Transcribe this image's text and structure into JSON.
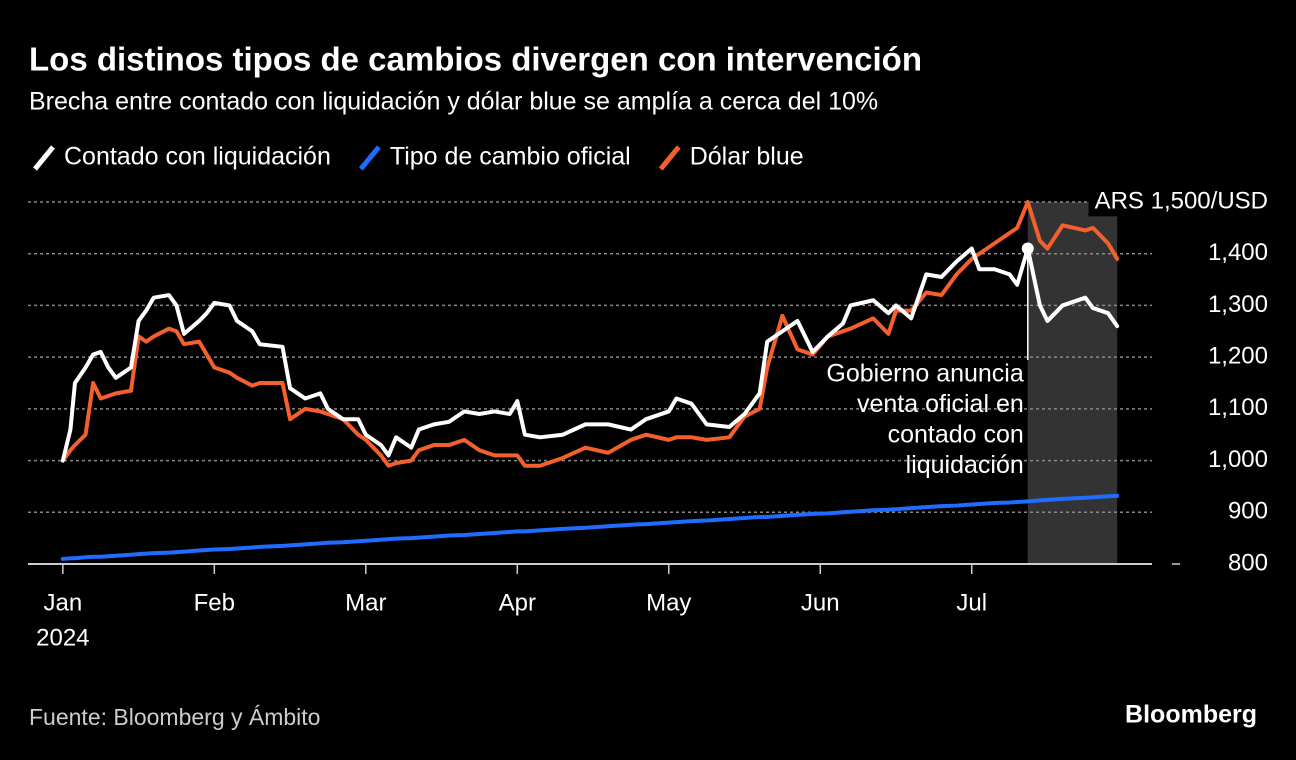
{
  "chart_data": {
    "type": "line",
    "title": "Los distinos tipos de cambios divergen con intervención",
    "subtitle": "Brecha entre contado con liquidación y dólar blue se amplía a cerca del 10%",
    "source": "Fuente: Bloomberg y Ámbito",
    "brand": "Bloomberg",
    "x": [
      1.0,
      1.05,
      1.08,
      1.15,
      1.2,
      1.25,
      1.3,
      1.35,
      1.45,
      1.5,
      1.55,
      1.6,
      1.7,
      1.75,
      1.8,
      1.9,
      1.95,
      2.0,
      2.1,
      2.15,
      2.25,
      2.3,
      2.45,
      2.5,
      2.6,
      2.7,
      2.75,
      2.85,
      2.95,
      3.0,
      3.1,
      3.15,
      3.2,
      3.3,
      3.35,
      3.45,
      3.55,
      3.65,
      3.75,
      3.85,
      3.95,
      4.0,
      4.05,
      4.15,
      4.3,
      4.45,
      4.6,
      4.75,
      4.85,
      5.0,
      5.05,
      5.15,
      5.25,
      5.4,
      5.5,
      5.6,
      5.65,
      5.75,
      5.85,
      5.95,
      6.05,
      6.15,
      6.2,
      6.35,
      6.45,
      6.5,
      6.6,
      6.7,
      6.8,
      6.9,
      7.0,
      7.05,
      7.15,
      7.25,
      7.3,
      7.37,
      7.45,
      7.5,
      7.6,
      7.75,
      7.8,
      7.9,
      7.96
    ],
    "series": [
      {
        "name": "Contado con liquidación",
        "color": "#ffffff",
        "values": [
          1000,
          1060,
          1150,
          1180,
          1205,
          1210,
          1180,
          1160,
          1180,
          1270,
          1290,
          1315,
          1320,
          1300,
          1245,
          1270,
          1285,
          1305,
          1300,
          1270,
          1250,
          1225,
          1220,
          1140,
          1120,
          1130,
          1100,
          1080,
          1080,
          1050,
          1030,
          1010,
          1045,
          1025,
          1060,
          1070,
          1075,
          1095,
          1090,
          1095,
          1090,
          1115,
          1050,
          1045,
          1050,
          1070,
          1070,
          1060,
          1080,
          1095,
          1120,
          1110,
          1070,
          1065,
          1090,
          1130,
          1230,
          1250,
          1270,
          1210,
          1240,
          1265,
          1300,
          1310,
          1285,
          1300,
          1275,
          1360,
          1355,
          1385,
          1410,
          1370,
          1370,
          1360,
          1340,
          1410,
          1300,
          1270,
          1300,
          1315,
          1295,
          1285,
          1260
        ]
      },
      {
        "name": "Tipo de cambio oficial",
        "color": "#1f6cff",
        "values": [
          810,
          811,
          811,
          813,
          814,
          814,
          815,
          816,
          818,
          819,
          820,
          821,
          822,
          823,
          824,
          826,
          827,
          828,
          829,
          830,
          832,
          833,
          835,
          836,
          838,
          840,
          841,
          842,
          844,
          845,
          847,
          848,
          849,
          850,
          851,
          853,
          855,
          856,
          858,
          860,
          862,
          863,
          863,
          865,
          868,
          870,
          873,
          876,
          877,
          880,
          881,
          883,
          884,
          887,
          889,
          891,
          891,
          893,
          895,
          897,
          898,
          900,
          901,
          904,
          905,
          906,
          908,
          910,
          912,
          913,
          915,
          916,
          918,
          919,
          920,
          921,
          923,
          924,
          926,
          928,
          929,
          931,
          932
        ]
      },
      {
        "name": "Dólar blue",
        "color": "#f4602c",
        "values": [
          1000,
          1020,
          1030,
          1050,
          1150,
          1120,
          1125,
          1130,
          1135,
          1240,
          1230,
          1240,
          1255,
          1250,
          1225,
          1230,
          1205,
          1180,
          1170,
          1160,
          1145,
          1150,
          1150,
          1080,
          1100,
          1095,
          1090,
          1080,
          1050,
          1040,
          1010,
          990,
          995,
          1000,
          1020,
          1030,
          1030,
          1040,
          1020,
          1010,
          1010,
          1010,
          990,
          990,
          1005,
          1025,
          1015,
          1040,
          1050,
          1040,
          1045,
          1045,
          1040,
          1045,
          1085,
          1100,
          1180,
          1280,
          1215,
          1205,
          1240,
          1250,
          1255,
          1275,
          1245,
          1290,
          1290,
          1325,
          1320,
          1360,
          1390,
          1400,
          1420,
          1440,
          1450,
          1500,
          1425,
          1410,
          1455,
          1445,
          1450,
          1420,
          1390
        ]
      }
    ],
    "xlim": [
      0.77,
      8.19
    ],
    "xticks": [
      {
        "value": 1,
        "label": "Jan"
      },
      {
        "value": 2,
        "label": "Feb"
      },
      {
        "value": 3,
        "label": "Mar"
      },
      {
        "value": 4,
        "label": "Apr"
      },
      {
        "value": 5,
        "label": "May"
      },
      {
        "value": 6,
        "label": "Jun"
      },
      {
        "value": 7,
        "label": "Jul"
      }
    ],
    "x_sublabel": "2024",
    "ylim": [
      800,
      1500
    ],
    "yticks": [
      800,
      900,
      {
        "value": 1000,
        "label": "1,000"
      },
      {
        "value": 1100,
        "label": "1,100"
      },
      {
        "value": 1200,
        "label": "1,200"
      },
      {
        "value": 1300,
        "label": "1,300"
      },
      {
        "value": 1400,
        "label": "1,400"
      },
      {
        "value": 1500,
        "label": "ARS 1,500/USD"
      }
    ],
    "grid": true,
    "highlight_x": [
      7.37,
      7.96
    ],
    "annotation": {
      "lines": [
        "Gobierno anuncia",
        "venta oficial en",
        "contado con",
        "liquidación"
      ],
      "x": 7.37,
      "y": 1410
    }
  }
}
